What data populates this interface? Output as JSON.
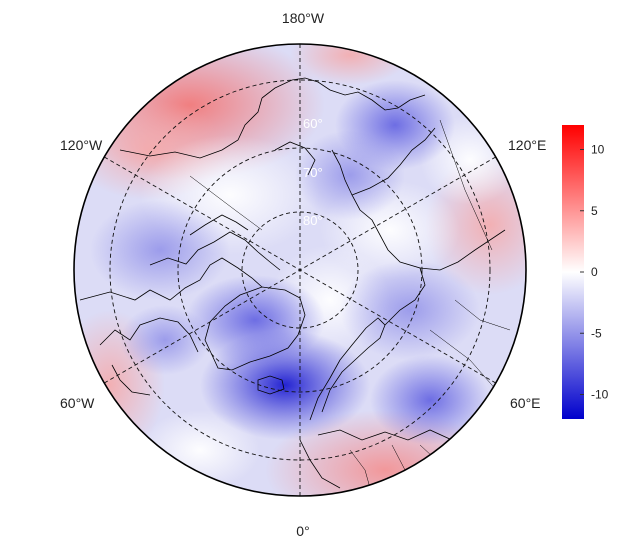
{
  "map": {
    "projection": "north-polar-stereographic",
    "longitude_labels": [
      {
        "text": "180°W"
      },
      {
        "text": "120°E"
      },
      {
        "text": "60°E"
      },
      {
        "text": "0°"
      },
      {
        "text": "60°W"
      },
      {
        "text": "120°W"
      }
    ],
    "latitude_labels": [
      "60°",
      "70°",
      "80°"
    ],
    "colorbar": {
      "range": [
        -12,
        12
      ],
      "ticks": [
        {
          "value": 10,
          "label": "10"
        },
        {
          "value": 5,
          "label": "5"
        },
        {
          "value": 0,
          "label": "0"
        },
        {
          "value": -5,
          "label": "-5"
        },
        {
          "value": -10,
          "label": "-10"
        }
      ],
      "colors": {
        "low": "#0000cc",
        "mid": "#ffffff",
        "high": "#ff0000"
      }
    }
  }
}
